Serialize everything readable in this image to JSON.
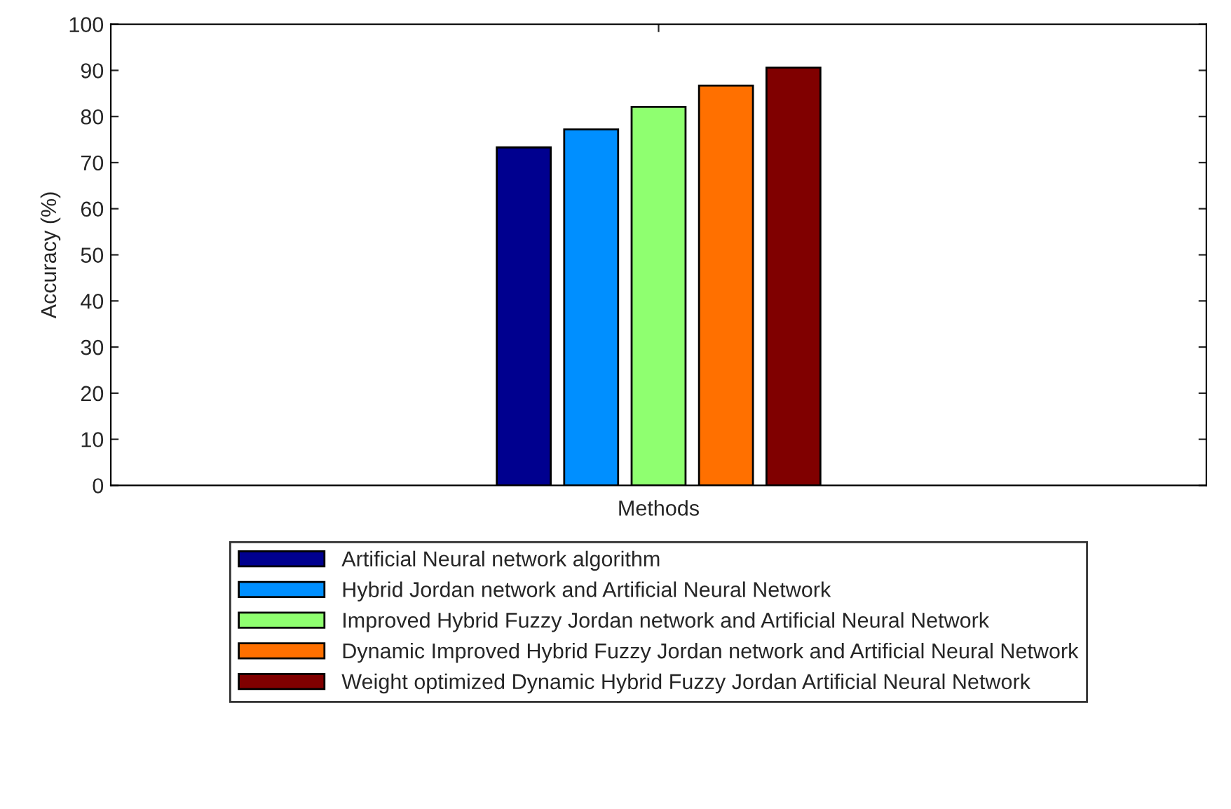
{
  "chart_data": {
    "type": "bar",
    "xlabel": "Methods",
    "ylabel": "Accuracy (%)",
    "categories": [
      null
    ],
    "series": [
      {
        "name": "Artificial Neural network algorithm",
        "color": "#00008f",
        "values": [
          73.3
        ]
      },
      {
        "name": "Hybrid Jordan network and Artificial Neural Network",
        "color": "#008fff",
        "values": [
          77.2
        ]
      },
      {
        "name": "Improved Hybrid Fuzzy Jordan network and Artificial Neural Network",
        "color": "#8fff70",
        "values": [
          82.1
        ]
      },
      {
        "name": "Dynamic Improved Hybrid Fuzzy Jordan network and Artificial Neural Network",
        "color": "#ff7000",
        "values": [
          86.7
        ]
      },
      {
        "name": "Weight optimized Dynamic Hybrid Fuzzy Jordan Artificial Neural Network",
        "color": "#800000",
        "values": [
          90.6
        ]
      }
    ],
    "ylim": [
      0,
      100
    ],
    "yticks": [
      0,
      10,
      20,
      30,
      40,
      50,
      60,
      70,
      80,
      90,
      100
    ],
    "grid": false,
    "legend": "bottom"
  }
}
